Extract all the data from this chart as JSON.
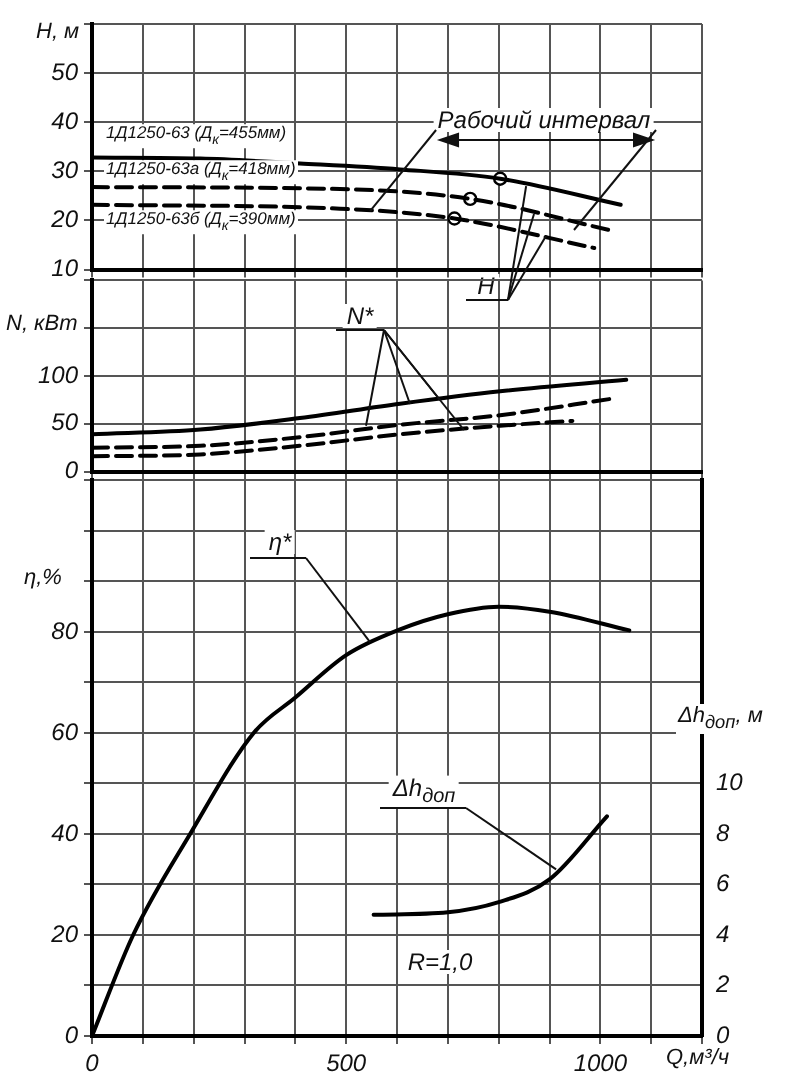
{
  "chart_data": [
    {
      "type": "line",
      "ylabel": "H, м",
      "xlim": [
        0,
        1200
      ],
      "xticks": [
        {
          "value": 0,
          "label": null
        },
        {
          "value": 100,
          "label": null
        },
        {
          "value": 200,
          "label": null
        },
        {
          "value": 300,
          "label": null
        },
        {
          "value": 400,
          "label": null
        },
        {
          "value": 500,
          "label": null
        },
        {
          "value": 600,
          "label": null
        },
        {
          "value": 700,
          "label": null
        },
        {
          "value": 800,
          "label": null
        },
        {
          "value": 900,
          "label": null
        },
        {
          "value": 1000,
          "label": null
        },
        {
          "value": 1100,
          "label": null
        },
        {
          "value": 1200,
          "label": null
        }
      ],
      "ylim": [
        10,
        60
      ],
      "yticks": [
        10,
        20,
        30,
        40,
        50,
        {
          "value": 60,
          "label": null
        }
      ],
      "tick_labels": "y",
      "grid": true,
      "annotations": [
        {
          "text": "Рабочий интервал",
          "x": 547,
          "y": 21.9
        },
        {
          "text": "H",
          "x": 854,
          "y": 27
        }
      ],
      "series": [
        {
          "name": "1Д1250-63 (Д$_{к}$=455мм)",
          "color": "#000000",
          "line_style": "solid",
          "x": [
            0,
            213,
            409,
            606,
            803,
            1040
          ],
          "values": [
            32.8,
            32.6,
            31.6,
            30.4,
            28.5,
            23.2
          ]
        },
        {
          "name": "1Д1250-63а (Д$_{к}$=418мм)",
          "color": "#000000",
          "line_style": "dashed",
          "x": [
            0,
            488,
            744,
            1020
          ],
          "values": [
            26.8,
            26.4,
            24.4,
            18
          ]
        },
        {
          "name": "1Д1250-63б (Д$_{к}$=390мм)",
          "color": "#000000",
          "line_style": "dashed",
          "x": [
            0,
            488,
            713,
            988
          ],
          "values": [
            23.2,
            22.4,
            20.4,
            14.4
          ]
        },
        {
          "type": "scatter",
          "color": "#000000",
          "marker": "circle",
          "x": [
            803,
            744,
            713
          ],
          "values": [
            28.5,
            24.4,
            20.4
          ]
        }
      ]
    },
    {
      "type": "line",
      "ylabel": "N, кВт",
      "xlim": [
        0,
        1200
      ],
      "xticks": [
        {
          "value": 0,
          "label": null
        },
        {
          "value": 100,
          "label": null
        },
        {
          "value": 200,
          "label": null
        },
        {
          "value": 300,
          "label": null
        },
        {
          "value": 400,
          "label": null
        },
        {
          "value": 500,
          "label": null
        },
        {
          "value": 600,
          "label": null
        },
        {
          "value": 700,
          "label": null
        },
        {
          "value": 800,
          "label": null
        },
        {
          "value": 900,
          "label": null
        },
        {
          "value": 1000,
          "label": null
        },
        {
          "value": 1100,
          "label": null
        },
        {
          "value": 1200,
          "label": null
        }
      ],
      "ylim": [
        0,
        200
      ],
      "yticks": [
        0,
        50,
        100,
        {
          "value": 150,
          "label": null
        },
        {
          "value": 200,
          "label": null
        }
      ],
      "tick_labels": "y",
      "grid": true,
      "annotations": [
        {
          "text": "N*",
          "x": 539,
          "y": 48
        }
      ],
      "series": [
        {
          "color": "#000000",
          "line_style": "solid",
          "x": [
            0,
            213,
            409,
            606,
            803,
            1051
          ],
          "values": [
            39,
            44,
            56,
            71,
            84,
            96
          ]
        },
        {
          "color": "#000000",
          "line_style": "dashed",
          "x": [
            0,
            213,
            409,
            606,
            803,
            1020
          ],
          "values": [
            25,
            27,
            36,
            49,
            59,
            76
          ]
        },
        {
          "color": "#000000",
          "line_style": "dashed",
          "x": [
            0,
            213,
            409,
            606,
            803,
            945
          ],
          "values": [
            16,
            18,
            27,
            39,
            48,
            53
          ]
        }
      ]
    },
    {
      "type": "line",
      "xlabel": "Q,м³/ч",
      "ylabel": "η,%",
      "y2label": "Δh$_{доп}$, м",
      "xlim": [
        0,
        1200
      ],
      "xticks": [
        0,
        {
          "value": 100,
          "label": null
        },
        {
          "value": 200,
          "label": null
        },
        {
          "value": 300,
          "label": null
        },
        {
          "value": 400,
          "label": null
        },
        500,
        {
          "value": 600,
          "label": null
        },
        {
          "value": 700,
          "label": null
        },
        {
          "value": 800,
          "label": null
        },
        {
          "value": 900,
          "label": null
        },
        1000,
        {
          "value": 1100,
          "label": null
        },
        {
          "value": 1200,
          "label": null
        }
      ],
      "ylim": [
        0,
        110
      ],
      "yticks": [
        0,
        {
          "value": 10,
          "label": null
        },
        20,
        {
          "value": 30,
          "label": null
        },
        40,
        {
          "value": 50,
          "label": null
        },
        60,
        {
          "value": 70,
          "label": null
        },
        80,
        {
          "value": 90,
          "label": null
        },
        {
          "value": 100,
          "label": null
        },
        {
          "value": 110,
          "label": null
        }
      ],
      "y2lim": [
        0,
        22
      ],
      "y2ticks": [
        0,
        2,
        4,
        6,
        8,
        10
      ],
      "grid": true,
      "annotations": [
        {
          "text": "η*",
          "x": 547,
          "y": 78
        },
        {
          "text": "Δh$_{доп}$",
          "x": 913,
          "y": 33
        },
        "R=1,0"
      ],
      "series": [
        {
          "color": "#000000",
          "line_style": "solid",
          "x": [
            0,
            81,
            193,
            318,
            400,
            500,
            606,
            700,
            800,
            900,
            1057
          ],
          "values": [
            0,
            20,
            40,
            60,
            67,
            75.4,
            80.5,
            83.5,
            85,
            84,
            80.3
          ]
        },
        {
          "axis": "y2",
          "color": "#000000",
          "line_style": "solid",
          "x": [
            554,
            700,
            800,
            900,
            1013
          ],
          "values": [
            4.8,
            4.9,
            5.3,
            6.2,
            8.7
          ]
        }
      ]
    }
  ]
}
